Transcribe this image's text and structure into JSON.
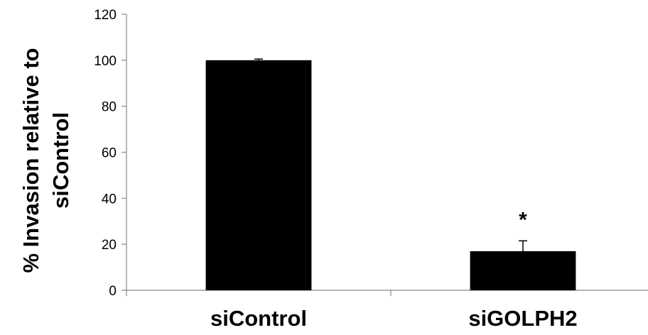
{
  "chart_data": {
    "type": "bar",
    "categories": [
      "siControl",
      "siGOLPH2"
    ],
    "values": [
      100,
      17
    ],
    "errors": [
      0.5,
      4.5
    ],
    "annotations": [
      "",
      "*"
    ],
    "ylabel_lines": [
      "% Invasion relative to",
      "siControl"
    ],
    "xlabel": "",
    "ylim": [
      0,
      120
    ],
    "yticks": [
      "0",
      "20",
      "40",
      "60",
      "80",
      "100",
      "120"
    ],
    "grid": false,
    "bar_color": "#000000"
  }
}
